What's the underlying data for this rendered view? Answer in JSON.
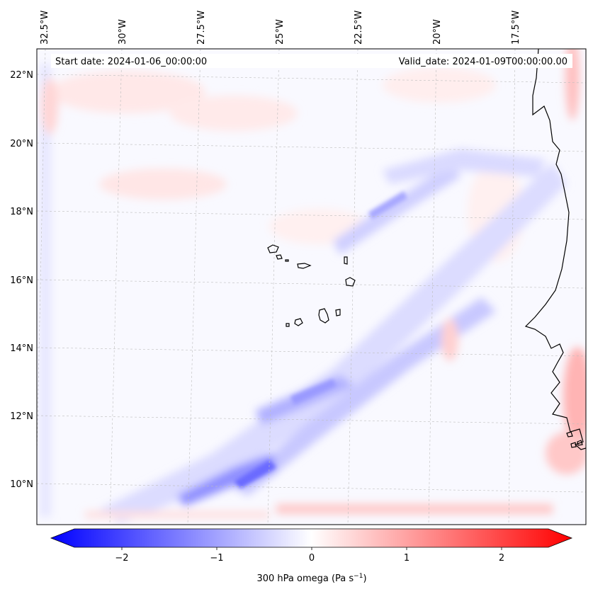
{
  "map": {
    "header": {
      "start_date": "Start date: 2024-01-06_00:00:00",
      "valid_date": "Valid_date: 2024-01-09T00:00:00.00"
    },
    "longitude_labels": [
      "32.5°W",
      "30°W",
      "27.5°W",
      "25°W",
      "22.5°W",
      "20°W",
      "17.5°W"
    ],
    "latitude_labels": [
      "22°N",
      "20°N",
      "18°N",
      "16°N",
      "14°N",
      "12°N",
      "10°N"
    ],
    "gridlines": true,
    "coastlines": true,
    "field": "300 hPa omega",
    "colormap": "bwr",
    "colors": {
      "negative": "#0000ff",
      "zero": "#ffffff",
      "positive": "#ff0000",
      "coast": "#000000"
    }
  },
  "colorbar": {
    "ticks": [
      "−2",
      "−1",
      "0",
      "1",
      "2"
    ],
    "tick_values": [
      -2,
      -1,
      0,
      1,
      2
    ],
    "range": [
      -2.5,
      2.5
    ],
    "label_main": "300 hPa omega (Pa s",
    "label_sup": "−1",
    "label_end": ")",
    "extend": "both"
  }
}
